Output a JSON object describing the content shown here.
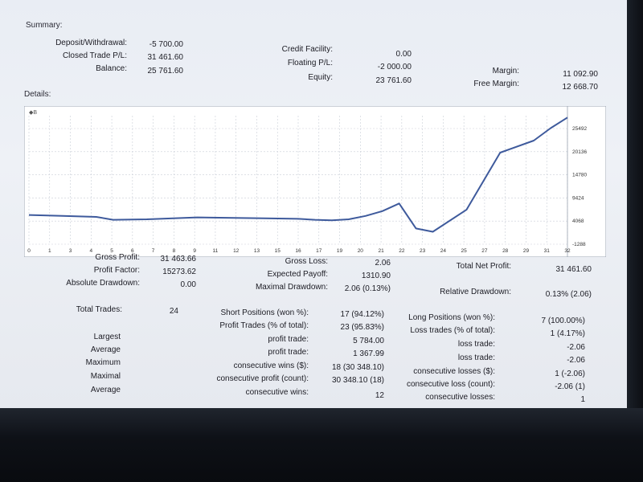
{
  "summary": {
    "title": "Summary:",
    "deposit_withdrawal": {
      "label": "Deposit/Withdrawal:",
      "value": "-5 700.00"
    },
    "closed_trade_pl": {
      "label": "Closed Trade P/L:",
      "value": "31 461.60"
    },
    "balance": {
      "label": "Balance:",
      "value": "25 761.60"
    },
    "credit_facility": {
      "label": "Credit Facility:",
      "value": "0.00"
    },
    "floating_pl": {
      "label": "Floating P/L:",
      "value": "-2 000.00"
    },
    "equity": {
      "label": "Equity:",
      "value": "23 761.60"
    },
    "margin": {
      "label": "Margin:",
      "value": "11 092.90"
    },
    "free_margin": {
      "label": "Free Margin:",
      "value": "12 668.70"
    }
  },
  "details": {
    "title": "Details:",
    "chart_legend": "◆B"
  },
  "stats": {
    "gross_profit": {
      "label": "Gross Profit:",
      "value": "31 463.66"
    },
    "profit_factor": {
      "label": "Profit Factor:",
      "value": "15273.62"
    },
    "absolute_drawdown": {
      "label": "Absolute Drawdown:",
      "value": "0.00"
    },
    "gross_loss": {
      "label": "Gross Loss:",
      "value": "2.06"
    },
    "expected_payoff": {
      "label": "Expected Payoff:",
      "value": "1310.90"
    },
    "maximal_drawdown": {
      "label": "Maximal Drawdown:",
      "value": "2.06 (0.13%)"
    },
    "total_net_profit": {
      "label": "Total Net Profit:",
      "value": "31 461.60"
    },
    "relative_drawdown": {
      "label": "Relative Drawdown:",
      "value": "0.13% (2.06)"
    },
    "total_trades": {
      "label": "Total Trades:",
      "value": "24"
    },
    "short_positions": {
      "label": "Short Positions (won %):",
      "value": "17 (94.12%)"
    },
    "profit_trades": {
      "label": "Profit Trades (% of total):",
      "value": "23 (95.83%)"
    },
    "long_positions": {
      "label": "Long Positions (won %):",
      "value": "7 (100.00%)"
    },
    "loss_trades": {
      "label": "Loss trades (% of total):",
      "value": "1 (4.17%)"
    },
    "row_labels": {
      "largest": "Largest",
      "average": "Average",
      "maximum": "Maximum",
      "maximal": "Maximal",
      "average2": "Average"
    },
    "largest_profit_trade": {
      "label": "profit trade:",
      "value": "5 784.00"
    },
    "average_profit_trade": {
      "label": "profit trade:",
      "value": "1 367.99"
    },
    "max_consec_wins": {
      "label": "consecutive wins ($):",
      "value": "18 (30 348.10)"
    },
    "maximal_consec_profit": {
      "label": "consecutive profit (count):",
      "value": "30 348.10 (18)"
    },
    "average_consec_wins": {
      "label": "consecutive wins:",
      "value": "12"
    },
    "largest_loss_trade": {
      "label": "loss trade:",
      "value": "-2.06"
    },
    "average_loss_trade": {
      "label": "loss trade:",
      "value": "-2.06"
    },
    "max_consec_losses": {
      "label": "consecutive losses ($):",
      "value": "1 (-2.06)"
    },
    "maximal_consec_loss": {
      "label": "consecutive loss (count):",
      "value": "-2.06 (1)"
    },
    "average_consec_losses": {
      "label": "consecutive losses:",
      "value": "1"
    }
  },
  "chart_data": {
    "type": "line",
    "line_color": "#3e5a9c",
    "grid": true,
    "x_ticks": [
      "0",
      "1",
      "3",
      "4",
      "5",
      "6",
      "7",
      "8",
      "9",
      "11",
      "12",
      "13",
      "15",
      "16",
      "17",
      "19",
      "20",
      "21",
      "22",
      "23",
      "24",
      "25",
      "27",
      "28",
      "29",
      "31",
      "32"
    ],
    "y_ticks": [
      "25492",
      "20136",
      "14780",
      "9424",
      "4068",
      "-1288"
    ],
    "ylim": [
      -1288,
      25492
    ],
    "series": [
      {
        "x": [
          0,
          2,
          4,
          5,
          7,
          10,
          14,
          16,
          17,
          18,
          19,
          20,
          21,
          22,
          23,
          24,
          26,
          28,
          30,
          31,
          32
        ],
        "y": [
          4800,
          4600,
          4400,
          3800,
          3900,
          4300,
          4100,
          4000,
          3800,
          3700,
          3900,
          4600,
          5600,
          7200,
          2000,
          1300,
          5900,
          17800,
          20300,
          22900,
          25100
        ]
      }
    ]
  }
}
